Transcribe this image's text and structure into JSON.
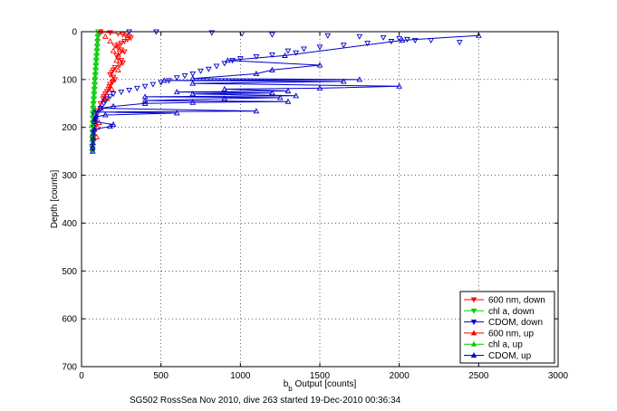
{
  "chart_data": {
    "type": "scatter",
    "title": "",
    "xlabel_main": "b",
    "xlabel_sub": "b",
    "xlabel_rest": " Output [counts]",
    "ylabel": "Depth [counts]",
    "xlim": [
      0,
      3000
    ],
    "ylim": [
      0,
      700
    ],
    "y_reversed": true,
    "x_ticks": [
      "0",
      "500",
      "1000",
      "1500",
      "2000",
      "2500",
      "3000"
    ],
    "y_ticks": [
      "0",
      "100",
      "200",
      "300",
      "400",
      "500",
      "600",
      "700"
    ],
    "grid": true,
    "legend_placement": "bottom-right",
    "caption": "SG502 RossSea Nov 2010, dive 263 started 19-Dec-2010 00:36:34",
    "series": [
      {
        "name": "600 nm, down",
        "color": "#ff0000",
        "marker": "triangle-down",
        "connect": true,
        "points": [
          [
            120,
            0
          ],
          [
            180,
            2
          ],
          [
            230,
            4
          ],
          [
            260,
            6
          ],
          [
            280,
            8
          ],
          [
            300,
            10
          ],
          [
            310,
            13
          ],
          [
            290,
            16
          ],
          [
            270,
            20
          ],
          [
            250,
            24
          ],
          [
            230,
            27
          ],
          [
            210,
            30
          ],
          [
            230,
            34
          ],
          [
            250,
            38
          ],
          [
            270,
            42
          ],
          [
            240,
            45
          ],
          [
            220,
            50
          ],
          [
            230,
            55
          ],
          [
            250,
            60
          ],
          [
            260,
            65
          ],
          [
            240,
            70
          ],
          [
            210,
            75
          ],
          [
            200,
            80
          ],
          [
            190,
            85
          ],
          [
            180,
            90
          ],
          [
            200,
            95
          ],
          [
            210,
            100
          ],
          [
            195,
            105
          ],
          [
            180,
            110
          ],
          [
            175,
            115
          ],
          [
            170,
            120
          ],
          [
            160,
            125
          ],
          [
            150,
            130
          ],
          [
            140,
            135
          ],
          [
            135,
            140
          ],
          [
            120,
            150
          ],
          [
            100,
            165
          ],
          [
            90,
            180
          ],
          [
            85,
            195
          ],
          [
            80,
            210
          ],
          [
            75,
            230
          ],
          [
            70,
            245
          ]
        ]
      },
      {
        "name": "chl a, down",
        "color": "#00cc00",
        "marker": "triangle-down",
        "connect": true,
        "points": [
          [
            105,
            0
          ],
          [
            104,
            10
          ],
          [
            102,
            20
          ],
          [
            100,
            30
          ],
          [
            98,
            40
          ],
          [
            96,
            50
          ],
          [
            94,
            60
          ],
          [
            92,
            70
          ],
          [
            90,
            80
          ],
          [
            88,
            90
          ],
          [
            86,
            100
          ],
          [
            84,
            110
          ],
          [
            82,
            120
          ],
          [
            80,
            130
          ],
          [
            78,
            140
          ],
          [
            76,
            150
          ],
          [
            74,
            160
          ],
          [
            73,
            170
          ],
          [
            72,
            180
          ],
          [
            71,
            190
          ],
          [
            70,
            200
          ],
          [
            70,
            210
          ],
          [
            69,
            220
          ],
          [
            69,
            230
          ],
          [
            68,
            240
          ],
          [
            68,
            250
          ]
        ]
      },
      {
        "name": "CDOM, down",
        "color": "#0000cc",
        "marker": "triangle-down",
        "connect": false,
        "points": [
          [
            300,
            0
          ],
          [
            470,
            0
          ],
          [
            820,
            2
          ],
          [
            1010,
            4
          ],
          [
            1200,
            6
          ],
          [
            1550,
            8
          ],
          [
            1750,
            10
          ],
          [
            1900,
            12
          ],
          [
            2000,
            14
          ],
          [
            2050,
            16
          ],
          [
            2100,
            18
          ],
          [
            1950,
            20
          ],
          [
            2200,
            18
          ],
          [
            2380,
            22
          ],
          [
            1800,
            24
          ],
          [
            1650,
            28
          ],
          [
            1500,
            32
          ],
          [
            1400,
            36
          ],
          [
            1300,
            40
          ],
          [
            1350,
            44
          ],
          [
            1200,
            48
          ],
          [
            1100,
            52
          ],
          [
            1000,
            56
          ],
          [
            950,
            60
          ],
          [
            900,
            66
          ],
          [
            850,
            72
          ],
          [
            800,
            78
          ],
          [
            750,
            82
          ],
          [
            700,
            88
          ],
          [
            650,
            92
          ],
          [
            600,
            96
          ],
          [
            550,
            102
          ],
          [
            500,
            106
          ],
          [
            450,
            110
          ],
          [
            400,
            114
          ],
          [
            350,
            118
          ],
          [
            300,
            122
          ],
          [
            250,
            126
          ],
          [
            200,
            130
          ],
          [
            180,
            135
          ],
          [
            160,
            140
          ],
          [
            150,
            145
          ],
          [
            140,
            150
          ],
          [
            120,
            160
          ],
          [
            100,
            170
          ],
          [
            85,
            180
          ],
          [
            80,
            190
          ],
          [
            75,
            200
          ],
          [
            70,
            210
          ],
          [
            70,
            225
          ],
          [
            68,
            240
          ]
        ]
      },
      {
        "name": "600 nm, up",
        "color": "#ff0000",
        "marker": "triangle-up",
        "connect": false,
        "points": [
          [
            120,
            0
          ],
          [
            150,
            10
          ],
          [
            180,
            20
          ],
          [
            200,
            40
          ],
          [
            220,
            60
          ],
          [
            230,
            80
          ],
          [
            200,
            100
          ],
          [
            190,
            120
          ],
          [
            160,
            140
          ],
          [
            120,
            160
          ],
          [
            110,
            190
          ],
          [
            100,
            200
          ],
          [
            95,
            220
          ]
        ]
      },
      {
        "name": "chl a, up",
        "color": "#00cc00",
        "marker": "triangle-up",
        "connect": true,
        "points": [
          [
            102,
            5
          ],
          [
            100,
            15
          ],
          [
            98,
            25
          ],
          [
            96,
            35
          ],
          [
            94,
            45
          ],
          [
            92,
            55
          ],
          [
            90,
            65
          ],
          [
            88,
            75
          ],
          [
            86,
            85
          ],
          [
            84,
            95
          ],
          [
            82,
            105
          ],
          [
            80,
            115
          ],
          [
            78,
            125
          ],
          [
            76,
            135
          ],
          [
            74,
            145
          ],
          [
            72,
            155
          ],
          [
            71,
            165
          ],
          [
            70,
            175
          ],
          [
            70,
            185
          ],
          [
            69,
            195
          ],
          [
            69,
            205
          ],
          [
            68,
            215
          ],
          [
            68,
            225
          ],
          [
            67,
            235
          ],
          [
            67,
            245
          ]
        ]
      },
      {
        "name": "CDOM, up",
        "color": "#0000cc",
        "marker": "triangle-up",
        "connect": true,
        "points": [
          [
            2500,
            8
          ],
          [
            2020,
            18
          ],
          [
            1280,
            50
          ],
          [
            920,
            60
          ],
          [
            1500,
            70
          ],
          [
            1200,
            80
          ],
          [
            1100,
            88
          ],
          [
            700,
            98
          ],
          [
            1750,
            100
          ],
          [
            520,
            102
          ],
          [
            1650,
            104
          ],
          [
            700,
            108
          ],
          [
            2000,
            114
          ],
          [
            1500,
            118
          ],
          [
            900,
            120
          ],
          [
            1300,
            124
          ],
          [
            600,
            126
          ],
          [
            1200,
            128
          ],
          [
            700,
            130
          ],
          [
            1350,
            134
          ],
          [
            400,
            136
          ],
          [
            1250,
            138
          ],
          [
            900,
            140
          ],
          [
            400,
            144
          ],
          [
            1300,
            146
          ],
          [
            700,
            148
          ],
          [
            400,
            150
          ],
          [
            200,
            156
          ],
          [
            120,
            160
          ],
          [
            1100,
            166
          ],
          [
            80,
            168
          ],
          [
            600,
            170
          ],
          [
            150,
            174
          ],
          [
            90,
            178
          ],
          [
            85,
            182
          ],
          [
            80,
            188
          ],
          [
            200,
            194
          ],
          [
            180,
            198
          ],
          [
            80,
            204
          ],
          [
            75,
            212
          ],
          [
            75,
            222
          ],
          [
            72,
            232
          ],
          [
            70,
            242
          ],
          [
            70,
            250
          ]
        ]
      }
    ]
  }
}
